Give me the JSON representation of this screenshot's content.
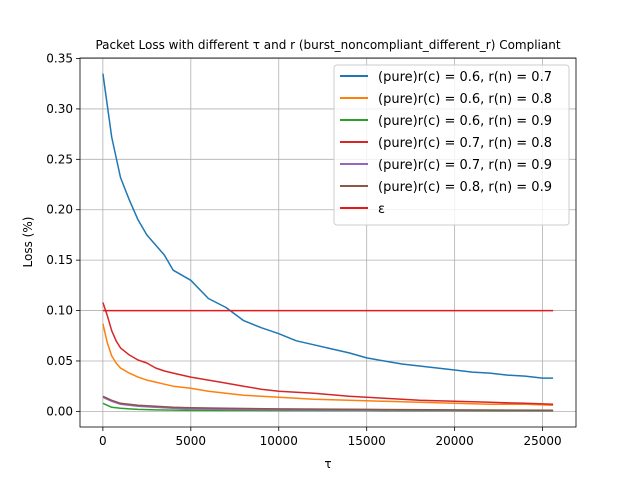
{
  "chart_data": {
    "type": "line",
    "title": "Packet Loss with different τ and r (burst_noncompliant_different_r) Compliant",
    "xlabel": "τ",
    "ylabel": "Loss (%)",
    "xlim": [
      -1300,
      26900
    ],
    "ylim": [
      -0.0155,
      0.3505
    ],
    "xticks": [
      0,
      5000,
      10000,
      15000,
      20000,
      25000
    ],
    "yticks": [
      0.0,
      0.05,
      0.1,
      0.15,
      0.2,
      0.25,
      0.3,
      0.35
    ],
    "ytick_labels": [
      "0.00",
      "0.05",
      "0.10",
      "0.15",
      "0.20",
      "0.25",
      "0.30",
      "0.35"
    ],
    "grid": true,
    "legend_position": "top-right",
    "series": [
      {
        "name": "(pure)r(c) = 0.6, r(n) = 0.7",
        "color": "#1f77b4",
        "x": [
          0,
          500,
          1000,
          1500,
          2000,
          2500,
          3000,
          3500,
          4000,
          5000,
          6000,
          7000,
          8000,
          9000,
          10000,
          11000,
          12000,
          13000,
          14000,
          15000,
          16000,
          17000,
          18000,
          19000,
          20000,
          21000,
          22000,
          23000,
          24000,
          25000,
          25600
        ],
        "y": [
          0.335,
          0.272,
          0.232,
          0.21,
          0.19,
          0.175,
          0.165,
          0.155,
          0.14,
          0.13,
          0.112,
          0.103,
          0.09,
          0.083,
          0.077,
          0.07,
          0.066,
          0.062,
          0.058,
          0.053,
          0.05,
          0.047,
          0.045,
          0.043,
          0.041,
          0.039,
          0.038,
          0.036,
          0.035,
          0.033,
          0.033
        ]
      },
      {
        "name": "(pure)r(c) = 0.6, r(n) = 0.8",
        "color": "#ff7f0e",
        "x": [
          0,
          250,
          500,
          750,
          1000,
          1500,
          2000,
          2500,
          3000,
          3500,
          4000,
          5000,
          6000,
          7000,
          8000,
          9000,
          10000,
          12000,
          14000,
          16000,
          18000,
          20000,
          22000,
          24000,
          25600
        ],
        "y": [
          0.087,
          0.068,
          0.055,
          0.048,
          0.043,
          0.038,
          0.034,
          0.031,
          0.029,
          0.027,
          0.025,
          0.023,
          0.02,
          0.018,
          0.016,
          0.015,
          0.014,
          0.012,
          0.011,
          0.01,
          0.009,
          0.008,
          0.007,
          0.007,
          0.006
        ]
      },
      {
        "name": "(pure)r(c) = 0.6, r(n) = 0.9",
        "color": "#2ca02c",
        "x": [
          0,
          500,
          1000,
          2000,
          3000,
          5000,
          10000,
          15000,
          20000,
          25600
        ],
        "y": [
          0.008,
          0.004,
          0.003,
          0.002,
          0.0015,
          0.001,
          0.0008,
          0.0006,
          0.0005,
          0.0004
        ]
      },
      {
        "name": "(pure)r(c) = 0.7, r(n) = 0.8",
        "color": "#d62728",
        "x": [
          0,
          250,
          500,
          750,
          1000,
          1500,
          2000,
          2500,
          3000,
          3500,
          4000,
          5000,
          6000,
          7000,
          8000,
          9000,
          10000,
          12000,
          14000,
          16000,
          18000,
          20000,
          22000,
          24000,
          25600
        ],
        "y": [
          0.108,
          0.095,
          0.08,
          0.07,
          0.063,
          0.056,
          0.051,
          0.048,
          0.043,
          0.04,
          0.038,
          0.034,
          0.031,
          0.028,
          0.025,
          0.022,
          0.02,
          0.018,
          0.015,
          0.013,
          0.011,
          0.01,
          0.009,
          0.008,
          0.007
        ]
      },
      {
        "name": "(pure)r(c) = 0.7, r(n) = 0.9",
        "color": "#9467bd",
        "x": [
          0,
          500,
          1000,
          2000,
          3000,
          4000,
          5000,
          7000,
          10000,
          15000,
          20000,
          25600
        ],
        "y": [
          0.014,
          0.01,
          0.007,
          0.005,
          0.004,
          0.003,
          0.0025,
          0.002,
          0.0015,
          0.0012,
          0.001,
          0.0008
        ]
      },
      {
        "name": "(pure)r(c) = 0.8, r(n) = 0.9",
        "color": "#8c564b",
        "x": [
          0,
          500,
          1000,
          2000,
          3000,
          4000,
          5000,
          7000,
          10000,
          15000,
          20000,
          25600
        ],
        "y": [
          0.015,
          0.011,
          0.008,
          0.006,
          0.005,
          0.004,
          0.0035,
          0.003,
          0.0025,
          0.002,
          0.0015,
          0.0012
        ]
      },
      {
        "name": "ε",
        "color": "#e31a1c",
        "x": [
          0,
          25600
        ],
        "y": [
          0.1,
          0.1
        ]
      }
    ]
  }
}
